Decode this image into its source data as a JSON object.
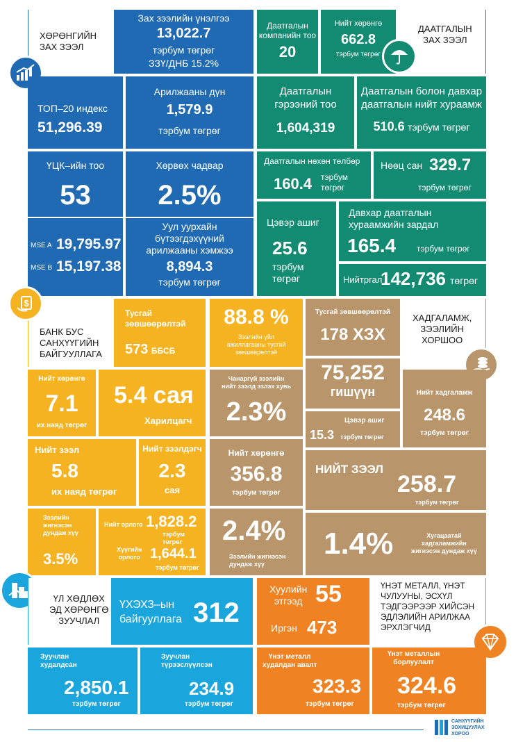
{
  "sections": {
    "nonbank_loan": "ХӨРӨНГИЙН\nЗАХ ЗЭЭЛ",
    "insurance": "ДААТГАЛЫН\nЗАХ ЗЭЭЛ",
    "nbfi": "БАНК БУС\nСАНХҮҮГИЙН\nБАЙГУУЛЛАГА",
    "savings": "ХАДГАЛАМЖ,\nЗЭЭЛИЙН\nХОРШОО",
    "real_estate": "ҮЛ ХӨДЛӨХ\nЭД ХӨРӨНГӨ\nЗУУЧЛАЛ",
    "precious": "ҮНЭТ МЕТАЛЛ, ҮНЭТ\nЧУЛУУНЫ, ЭСХҮЛ\nТЭДГЭЭРЭЭР ХИЙСЭН\nЭДЛЭЛИЙН АРИЛЖАА\nЭРХЛЭГЧИД"
  },
  "capital": {
    "market_cap_label": "Зах зээлийн үнэлгээ",
    "market_cap_value": "13,022.7",
    "market_cap_unit": "тэрбум төгрөг",
    "market_cap_gdp": "ЗЗҮ/ДНБ 15.2%",
    "top20_label": "ТОП–20 индекс",
    "top20_value": "51,296.39",
    "trade_label": "Арилжааны дүн",
    "trade_value": "1,579.9",
    "trade_unit": "тэрбум төгрөг",
    "ucc_label": "ҮЦК–ийн тоо",
    "ucc_value": "53",
    "liquidity_label": "Хөрвөх чадвар",
    "liquidity_value": "2.5%",
    "mse_a_label": "MSE A",
    "mse_a_value": "19,795.97",
    "mse_b_label": "MSE B",
    "mse_b_value": "15,197.38",
    "mining_label": "Уул уурхайн\nбүтээгдэхүүний\nарилжааны хэмжээ",
    "mining_value": "8,894.3",
    "mining_unit": "тэрбум төгрөг"
  },
  "insurance": {
    "companies_label": "Даатгалын\nкомпанийн тоо",
    "companies_value": "20",
    "assets_label": "Нийт хөрөнгө",
    "assets_value": "662.8",
    "assets_unit": "тэрбум төгрөг",
    "contracts_label": "Даатгалын\nгэрээний тоо",
    "contracts_value": "1,604,319",
    "premium_label": "Даатгалын болон давхар\nдаатгалын нийт хураамж",
    "premium_value": "510.6",
    "premium_unit": "тэрбум төгрөг",
    "claims_label": "Даатгалын нөхөн төлбөр",
    "claims_value": "160.4",
    "claims_unit": "тэрбум\nтөгрөг",
    "reserve_label": "Нөөц сан",
    "reserve_value": "329.7",
    "reserve_unit": "тэрбум төгрөг",
    "profit_label": "Цэвэр ашиг",
    "profit_value": "25.6",
    "profit_unit": "тэрбум\nтөгрөг",
    "reins_label": "Давхар даатгалын\nхураамжийн зардал",
    "reins_value": "165.4",
    "reins_unit": "тэрбум төгрөг",
    "total_label": "Нийт",
    "total_label2": "ргал",
    "total_value": "142,736",
    "total_unit": "төгрөг"
  },
  "nbfi": {
    "special_label": "Тусгай\nзөвшөөрөлтэй",
    "special_value": "573",
    "special_unit": "ББСБ",
    "pct_value": "88.8 %",
    "pct_label": "Зээлийн үйл\nажиллагааны тусгай\nзөвшөөрөлтэй",
    "assets_label": "Нийт хөрөнгө",
    "assets_value": "7.1",
    "assets_unit": "их наяд төгрөг",
    "clients_value": "5.4 сая",
    "clients_label": "Харилцагч",
    "loans_label": "Нийт зээл",
    "loans_value": "5.8",
    "loans_unit": "их наяд төгрөг",
    "borrowers_label": "Нийт зээлдэгч",
    "borrowers_value": "2.3",
    "borrowers_unit": "сая",
    "rate_label": "Зээлийн\nжигнэсэн\nдундаж хүү",
    "rate_value": "3.5%",
    "income_label": "Нийт орлого",
    "income_value": "1,828.2",
    "income_unit": "тэрбум төгрөг",
    "interest_label": "Хүүгийн\nорлого",
    "interest_value": "1,644.1",
    "interest_unit": "тэрбум төгрөг"
  },
  "savings": {
    "licensed_label": "Тусгай зөвшөөрөлтэй",
    "licensed_value": "178 ХЗХ",
    "members_value": "75,252",
    "members_label": "гишүүн",
    "npl_label": "Чанаргүй зээлийн\nнийт зээлд эзлэх хувь",
    "npl_value": "2.3%",
    "deposits_label": "Нийт хадгаламж",
    "deposits_value": "248.6",
    "deposits_unit": "тэрбум төгрөг",
    "profit_label": "Цэвэр ашиг",
    "profit_value": "15.3",
    "profit_unit": "тэрбум төгрөг",
    "assets_label": "Нийт хөрөнгө",
    "assets_value": "356.8",
    "assets_unit": "тэрбум төгрөг",
    "loans_label": "НИЙТ ЗЭЭЛ",
    "loans_value": "258.7",
    "loans_unit": "тэрбум төгрөг",
    "loan_rate_value": "2.4%",
    "loan_rate_label": "Зээлийн жигнэсэн\nдундаж хүү",
    "dep_rate_value": "1.4%",
    "dep_rate_label": "Хугацаатай\nхадгаламжийн\nжигнэсэн дундаж хүү"
  },
  "real_estate": {
    "org_label": "ҮХЭХЗ–ын\nбайгууллага",
    "org_value": "312",
    "sold_label": "Зуучлан\nхудалдсан",
    "sold_value": "2,850.1",
    "sold_unit": "тэрбум төгрөг",
    "rent_label": "Зуучлан\nтүрээслүүлсэн",
    "rent_value": "234.9",
    "rent_unit": "тэрбум төгрөг"
  },
  "precious": {
    "legal_label": "Хуулийн\nэтгээд",
    "legal_value": "55",
    "citizen_label": "Иргэн",
    "citizen_value": "473",
    "buy_label": "Үнэт металл\nхудалдан авалт",
    "buy_value": "323.3",
    "buy_unit": "тэрбум төгрөг",
    "sell_label": "Үнэт металлын\nборлуулалт",
    "sell_value": "324.6",
    "sell_unit": "тэрбум төгрөг"
  },
  "logo": {
    "text": "САНХҮҮГИЙН\nЗОХИЦУУЛАХ\nХОРОО"
  }
}
